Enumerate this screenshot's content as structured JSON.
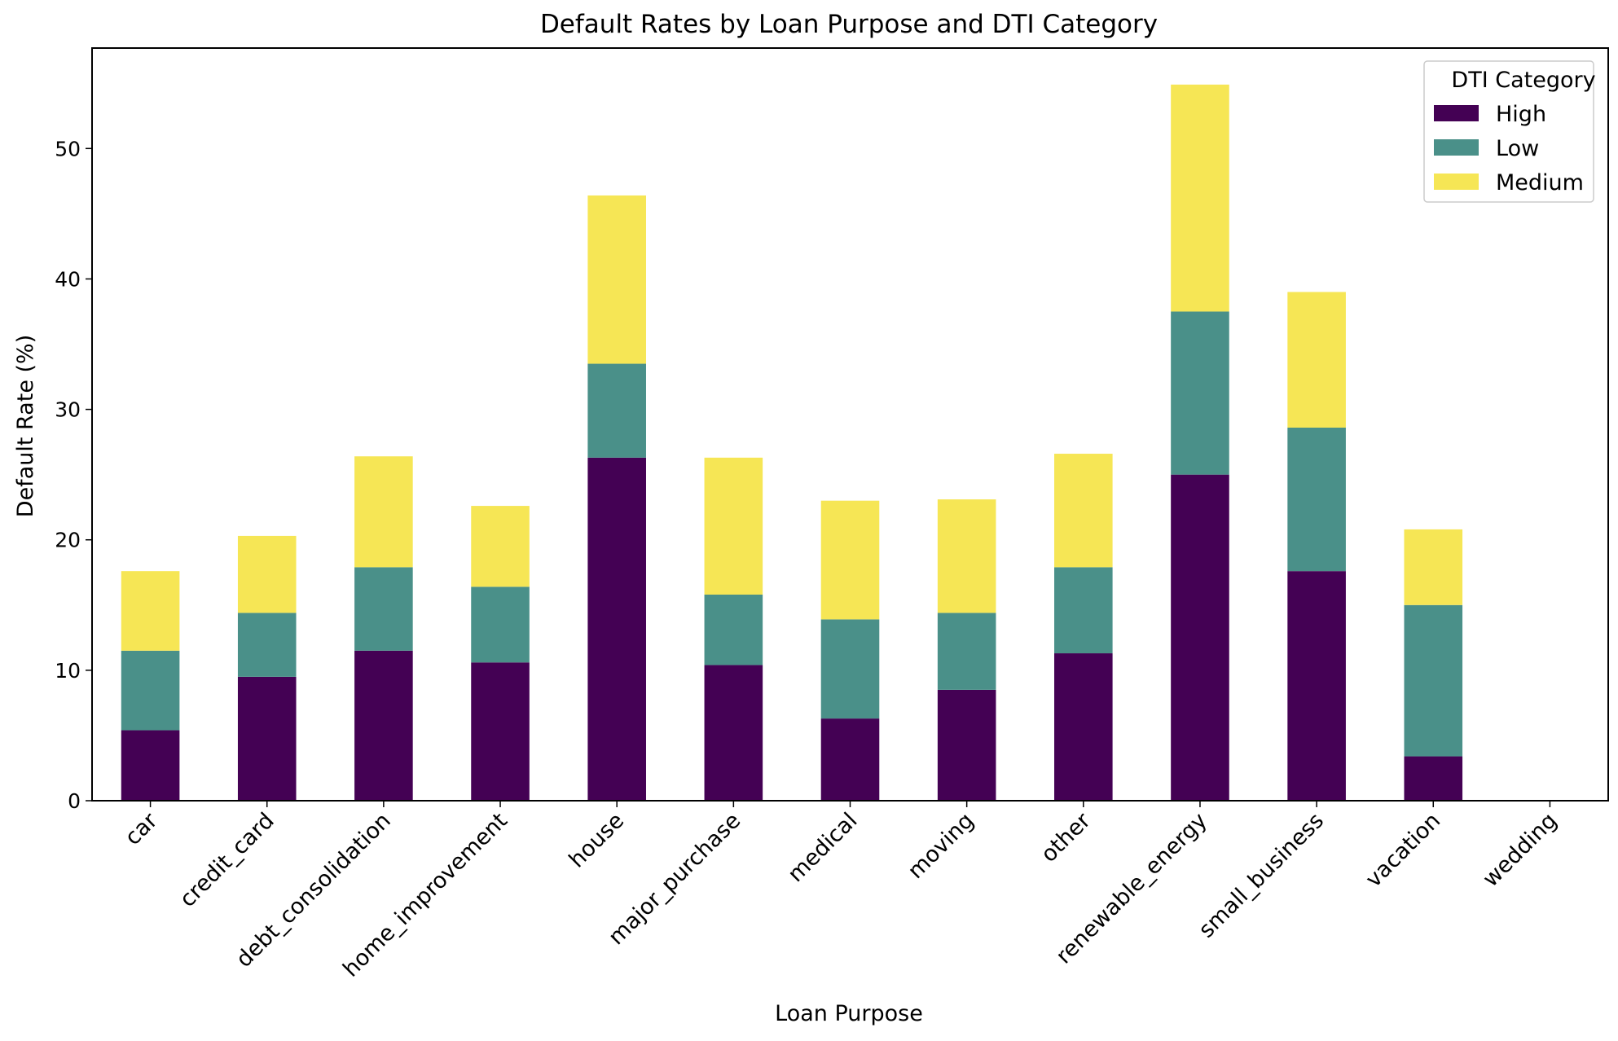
{
  "chart_data": {
    "type": "bar",
    "stacked": true,
    "title": "Default Rates by Loan Purpose and DTI Category",
    "xlabel": "Loan Purpose",
    "ylabel": "Default Rate (%)",
    "ylim": [
      0,
      57.7
    ],
    "yticks": [
      0,
      10,
      20,
      30,
      40,
      50
    ],
    "grid": false,
    "legend": {
      "title": "DTI Category",
      "placement": "top-right"
    },
    "categories": [
      "car",
      "credit_card",
      "debt_consolidation",
      "home_improvement",
      "house",
      "major_purchase",
      "medical",
      "moving",
      "other",
      "renewable_energy",
      "small_business",
      "vacation",
      "wedding"
    ],
    "series": [
      {
        "name": "High",
        "color": "#440154",
        "values": [
          5.4,
          9.5,
          11.5,
          10.6,
          26.3,
          10.4,
          6.3,
          8.5,
          11.3,
          25.0,
          17.6,
          3.4,
          0
        ]
      },
      {
        "name": "Low",
        "color": "#4a9089",
        "values": [
          6.1,
          4.9,
          6.4,
          5.8,
          7.2,
          5.4,
          7.6,
          5.9,
          6.6,
          12.5,
          11.0,
          11.6,
          0
        ]
      },
      {
        "name": "Medium",
        "color": "#f6e655",
        "values": [
          6.1,
          5.9,
          8.5,
          6.2,
          12.9,
          10.5,
          9.1,
          8.7,
          8.7,
          17.4,
          10.4,
          5.8,
          0
        ]
      }
    ]
  }
}
